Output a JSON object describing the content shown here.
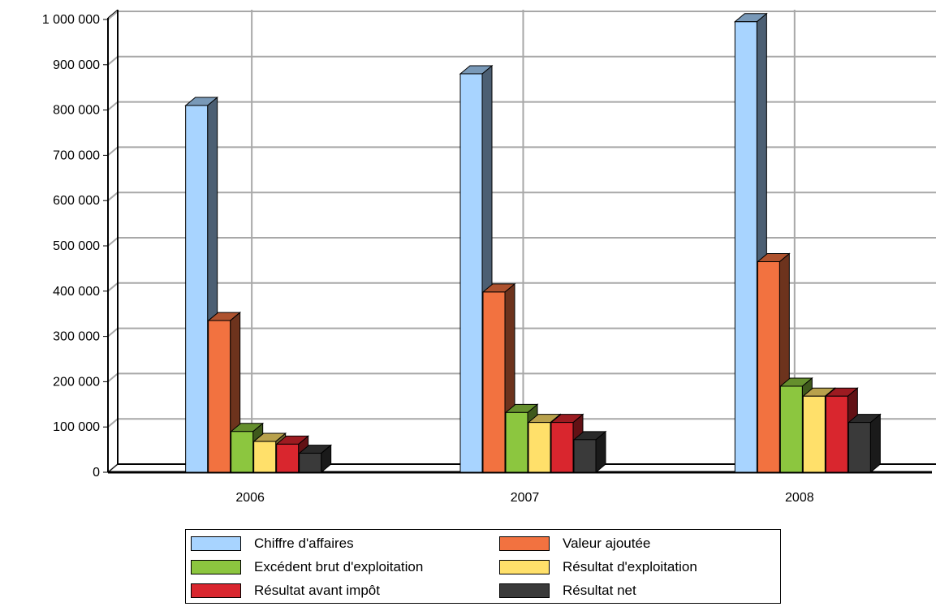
{
  "chart_data": {
    "type": "bar",
    "categories": [
      "2006",
      "2007",
      "2008"
    ],
    "series": [
      {
        "name": "Chiffre d'affaires",
        "color": "#a8d4ff",
        "values": [
          810000,
          880000,
          995000
        ]
      },
      {
        "name": "Valeur ajoutée",
        "color": "#f27240",
        "values": [
          335000,
          398000,
          465000
        ]
      },
      {
        "name": "Excédent brut d'exploitation",
        "color": "#8cc63f",
        "values": [
          90000,
          132000,
          190000
        ]
      },
      {
        "name": "Résultat d'exploitation",
        "color": "#ffe06a",
        "values": [
          68000,
          110000,
          168000
        ]
      },
      {
        "name": "Résultat avant impôt",
        "color": "#d9262e",
        "values": [
          62000,
          110000,
          168000
        ]
      },
      {
        "name": "Résultat net",
        "color": "#3a3a3a",
        "values": [
          42000,
          72000,
          110000
        ]
      }
    ],
    "yticks": [
      "0",
      "100 000",
      "200 000",
      "300 000",
      "400 000",
      "500 000",
      "600 000",
      "700 000",
      "800 000",
      "900 000",
      "1 000 000"
    ],
    "ylim": [
      0,
      1000000
    ],
    "grid": true,
    "legend_position": "bottom",
    "style": "3d-clustered-bar"
  }
}
